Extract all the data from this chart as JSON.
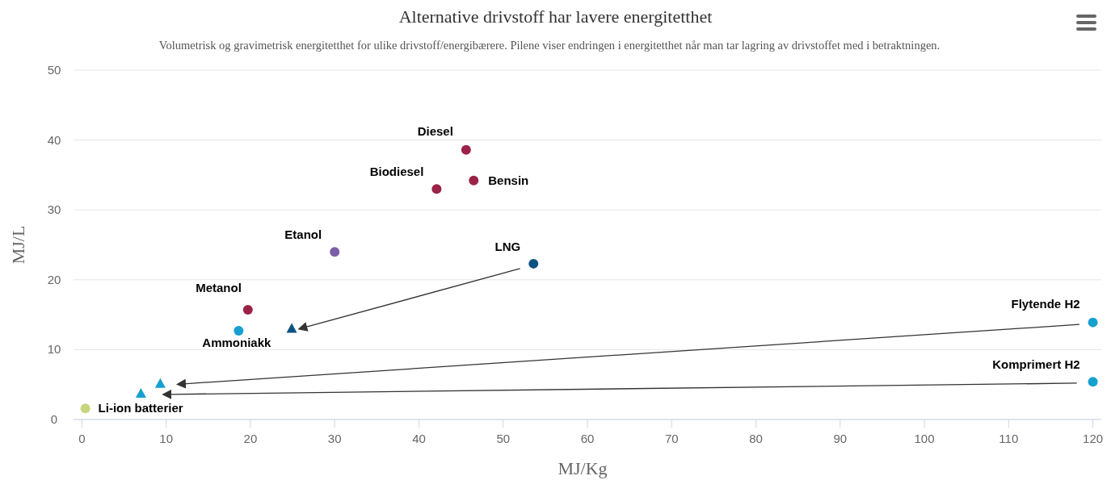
{
  "chart_data": {
    "type": "scatter",
    "title": "Alternative drivstoff har lavere energitetthet",
    "subtitle": "Volumetrisk og gravimetrisk energitetthet for ulike drivstoff/energibærere. Pilene viser endringen i energitetthet når man tar lagring av drivstoffet med i betraktningen.",
    "xlabel": "MJ/Kg",
    "ylabel": "MJ/L",
    "xlim": [
      -1,
      121
    ],
    "ylim": [
      0,
      50
    ],
    "xticks": [
      0,
      10,
      20,
      30,
      40,
      50,
      60,
      70,
      80,
      90,
      100,
      110,
      120
    ],
    "yticks": [
      0,
      10,
      20,
      30,
      40,
      50
    ],
    "grid": "y",
    "series": [
      {
        "color": "#9b2348",
        "marker": "circle",
        "x": [
          45.6,
          46.5,
          42.1,
          19.7
        ],
        "values": [
          38.6,
          34.2,
          33.0,
          15.7
        ]
      },
      {
        "color": "#7b5ea7",
        "marker": "circle",
        "x": [
          30.0
        ],
        "values": [
          24.0
        ]
      },
      {
        "color": "#0b5380",
        "marker": "circle",
        "x": [
          53.6
        ],
        "values": [
          22.3
        ]
      },
      {
        "color": "#0b5380",
        "marker": "triangle",
        "x": [
          24.9
        ],
        "values": [
          13.0
        ]
      },
      {
        "color": "#16a0d0",
        "marker": "circle",
        "x": [
          18.6,
          120,
          120
        ],
        "values": [
          12.7,
          13.9,
          5.4
        ]
      },
      {
        "color": "#16a0d0",
        "marker": "triangle",
        "x": [
          9.3,
          7.0
        ],
        "values": [
          5.1,
          3.7
        ]
      },
      {
        "color": "#c5d67d",
        "marker": "circle",
        "x": [
          0.4
        ],
        "values": [
          1.6
        ]
      },
      {
        "type": "line",
        "color": "#333333",
        "x": [
          52.0,
          26.5
        ],
        "values": [
          21.6,
          13.2
        ]
      },
      {
        "type": "line",
        "color": "#333333",
        "x": [
          118.4,
          12.1
        ],
        "values": [
          13.6,
          5.1
        ]
      },
      {
        "type": "line",
        "color": "#333333",
        "x": [
          118.1,
          10.4
        ],
        "values": [
          5.2,
          3.6
        ]
      }
    ],
    "annotations": [
      {
        "text": "Diesel",
        "x": 45.6,
        "y": 38.6
      },
      {
        "text": "Bensin",
        "x": 46.5,
        "y": 34.2
      },
      {
        "text": "Biodiesel",
        "x": 42.1,
        "y": 33.0
      },
      {
        "text": "Etanol",
        "x": 30.0,
        "y": 24.0
      },
      {
        "text": "LNG",
        "x": 53.6,
        "y": 22.3
      },
      {
        "text": "Metanol",
        "x": 19.7,
        "y": 15.7
      },
      {
        "text": "Ammoniakk",
        "x": 18.6,
        "y": 12.7
      },
      {
        "text": "Flytende H2",
        "x": 120,
        "y": 13.9
      },
      {
        "text": "Komprimert H2",
        "x": 120,
        "y": 5.4
      },
      {
        "text": "Li-ion batterier",
        "x": 0.4,
        "y": 1.6
      }
    ]
  }
}
